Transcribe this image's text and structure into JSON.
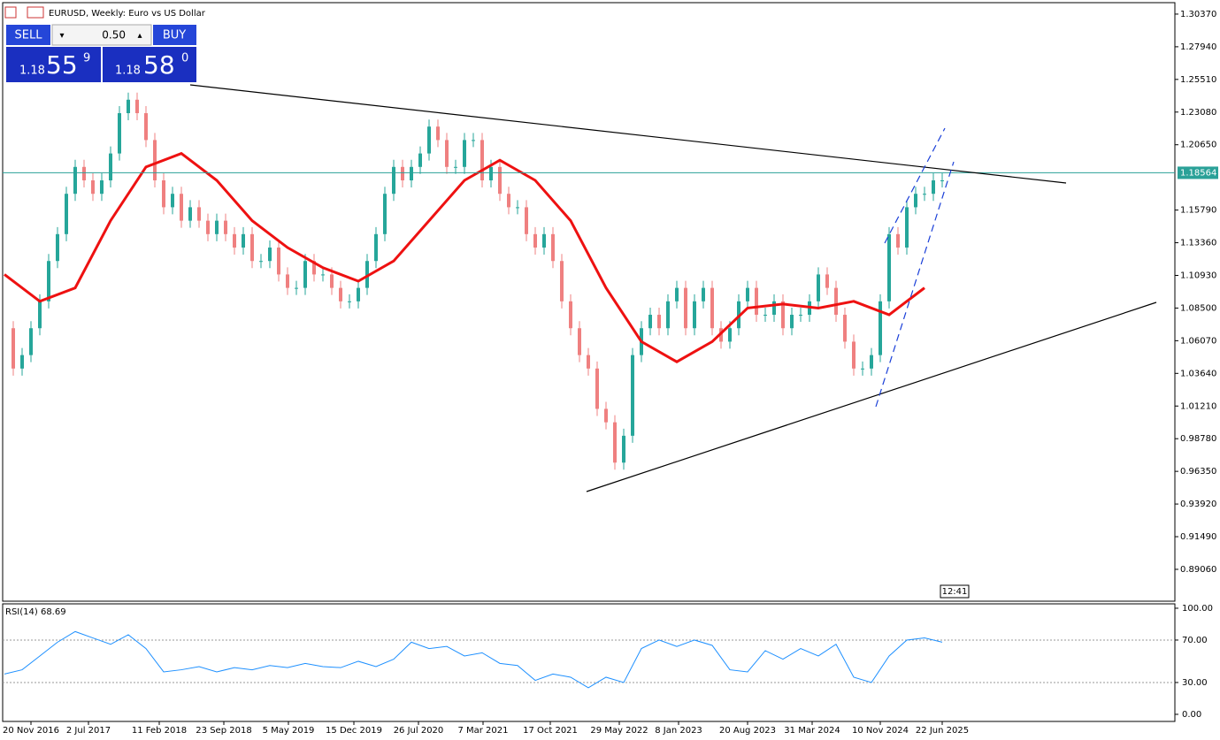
{
  "header": {
    "title": "EURUSD, Weekly:  Euro vs US Dollar"
  },
  "trade_panel": {
    "sell": "SELL",
    "volume": "0.50",
    "buy": "BUY",
    "bid_big": "1.18",
    "bid_main": "55",
    "bid_small": "9",
    "ask_big": "1.18",
    "ask_main": "58",
    "ask_small": "0"
  },
  "chart_data": {
    "type": "candlestick",
    "x_labels": [
      "20 Nov 2016",
      "2 Jul 2017",
      "11 Feb 2018",
      "23 Sep 2018",
      "5 May 2019",
      "15 Dec 2019",
      "26 Jul 2020",
      "7 Mar 2021",
      "17 Oct 2021",
      "29 May 2022",
      "8 Jan 2023",
      "20 Aug 2023",
      "31 Mar 2024",
      "10 Nov 2024",
      "22 Jun 2025"
    ],
    "closes": [
      1.07,
      1.04,
      1.05,
      1.07,
      1.09,
      1.12,
      1.14,
      1.17,
      1.19,
      1.18,
      1.17,
      1.18,
      1.2,
      1.23,
      1.24,
      1.23,
      1.21,
      1.18,
      1.16,
      1.17,
      1.15,
      1.16,
      1.15,
      1.14,
      1.15,
      1.14,
      1.13,
      1.14,
      1.12,
      1.12,
      1.13,
      1.11,
      1.1,
      1.1,
      1.12,
      1.11,
      1.11,
      1.1,
      1.09,
      1.09,
      1.1,
      1.12,
      1.14,
      1.17,
      1.19,
      1.18,
      1.19,
      1.2,
      1.22,
      1.21,
      1.19,
      1.19,
      1.21,
      1.21,
      1.18,
      1.19,
      1.17,
      1.16,
      1.16,
      1.14,
      1.13,
      1.14,
      1.12,
      1.09,
      1.07,
      1.05,
      1.04,
      1.01,
      1.0,
      0.97,
      0.99,
      1.05,
      1.07,
      1.08,
      1.07,
      1.09,
      1.1,
      1.07,
      1.09,
      1.1,
      1.07,
      1.06,
      1.07,
      1.09,
      1.1,
      1.08,
      1.08,
      1.09,
      1.07,
      1.08,
      1.08,
      1.09,
      1.11,
      1.1,
      1.08,
      1.06,
      1.04,
      1.04,
      1.05,
      1.09,
      1.14,
      1.13,
      1.16,
      1.17,
      1.17,
      1.18,
      1.18
    ],
    "up_color": "#26a69a",
    "down_color": "#ef8080",
    "ma_values": [
      1.11,
      1.09,
      1.1,
      1.15,
      1.19,
      1.2,
      1.18,
      1.15,
      1.13,
      1.115,
      1.105,
      1.12,
      1.15,
      1.18,
      1.195,
      1.18,
      1.15,
      1.1,
      1.06,
      1.045,
      1.06,
      1.085,
      1.088,
      1.085,
      1.09,
      1.08,
      1.1
    ],
    "ma_color": "#ee1111",
    "ylim": [
      0.8669,
      1.3109
    ],
    "yticks": [
      {
        "value": 1.3037,
        "label": "1.30370"
      },
      {
        "value": 1.2794,
        "label": "1.27940"
      },
      {
        "value": 1.2551,
        "label": "1.25510"
      },
      {
        "value": 1.2308,
        "label": "1.23080"
      },
      {
        "value": 1.2065,
        "label": "1.20650"
      },
      {
        "value": 1.1579,
        "label": "1.15790"
      },
      {
        "value": 1.1336,
        "label": "1.13360"
      },
      {
        "value": 1.1093,
        "label": "1.10930"
      },
      {
        "value": 1.085,
        "label": "1.08500"
      },
      {
        "value": 1.0607,
        "label": "1.06070"
      },
      {
        "value": 1.0364,
        "label": "1.03640"
      },
      {
        "value": 1.0121,
        "label": "1.01210"
      },
      {
        "value": 0.9878,
        "label": "0.98780"
      },
      {
        "value": 0.9635,
        "label": "0.96350"
      },
      {
        "value": 0.9392,
        "label": "0.93920"
      },
      {
        "value": 0.9149,
        "label": "0.91490"
      },
      {
        "value": 0.8906,
        "label": "0.89060"
      }
    ],
    "current_price": {
      "value": 1.18564,
      "label": "1.18564"
    },
    "time_label": "12:41",
    "rsi": {
      "label": "RSI(14) 68.69",
      "color": "#1e90ff",
      "ylim": [
        -6.7,
        103.3
      ],
      "yticks": [
        {
          "value": 100,
          "label": "100.00"
        },
        {
          "value": 70,
          "label": "70.00"
        },
        {
          "value": 30,
          "label": "30.00"
        },
        {
          "value": 0,
          "label": "0.00"
        }
      ],
      "levels": [
        70,
        30
      ],
      "values": [
        38,
        42,
        55,
        68,
        78,
        72,
        66,
        75,
        62,
        40,
        42,
        45,
        40,
        44,
        42,
        46,
        44,
        48,
        45,
        44,
        50,
        45,
        52,
        68,
        62,
        64,
        55,
        58,
        48,
        46,
        32,
        38,
        35,
        25,
        35,
        30,
        62,
        70,
        64,
        70,
        65,
        42,
        40,
        60,
        52,
        62,
        55,
        66,
        35,
        30,
        55,
        70,
        72,
        68
      ]
    }
  }
}
